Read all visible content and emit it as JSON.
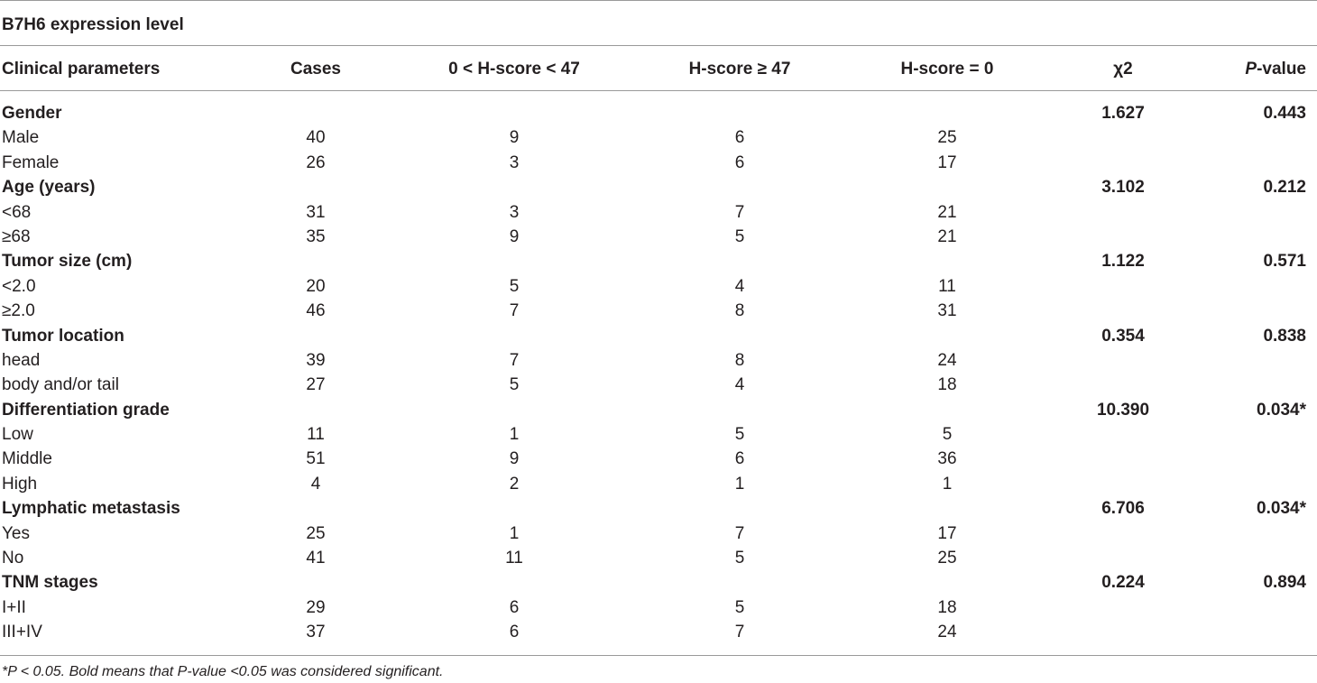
{
  "caption": "B7H6 expression level",
  "headers": {
    "param": "Clinical parameters",
    "cases": "Cases",
    "low": "0 < H-score < 47",
    "high": "H-score ≥ 47",
    "zero": "H-score = 0",
    "chi": "χ2",
    "p_italic": "P",
    "p_rest": "-value"
  },
  "rows": [
    {
      "param": "Gender",
      "cases": "",
      "low": "",
      "high": "",
      "zero": "",
      "chi": "1.627",
      "p": "0.443",
      "group": true
    },
    {
      "param": "Male",
      "cases": "40",
      "low": "9",
      "high": "6",
      "zero": "25",
      "chi": "",
      "p": "",
      "group": false
    },
    {
      "param": "Female",
      "cases": "26",
      "low": "3",
      "high": "6",
      "zero": "17",
      "chi": "",
      "p": "",
      "group": false
    },
    {
      "param": "Age (years)",
      "cases": "",
      "low": "",
      "high": "",
      "zero": "",
      "chi": "3.102",
      "p": "0.212",
      "group": true
    },
    {
      "param": "<68",
      "cases": "31",
      "low": "3",
      "high": "7",
      "zero": "21",
      "chi": "",
      "p": "",
      "group": false
    },
    {
      "param": "≥68",
      "cases": "35",
      "low": "9",
      "high": "5",
      "zero": "21",
      "chi": "",
      "p": "",
      "group": false
    },
    {
      "param": "Tumor size (cm)",
      "cases": "",
      "low": "",
      "high": "",
      "zero": "",
      "chi": "1.122",
      "p": "0.571",
      "group": true
    },
    {
      "param": "<2.0",
      "cases": "20",
      "low": "5",
      "high": "4",
      "zero": "11",
      "chi": "",
      "p": "",
      "group": false
    },
    {
      "param": "≥2.0",
      "cases": "46",
      "low": "7",
      "high": "8",
      "zero": "31",
      "chi": "",
      "p": "",
      "group": false
    },
    {
      "param": "Tumor location",
      "cases": "",
      "low": "",
      "high": "",
      "zero": "",
      "chi": "0.354",
      "p": "0.838",
      "group": true
    },
    {
      "param": "head",
      "cases": "39",
      "low": "7",
      "high": "8",
      "zero": "24",
      "chi": "",
      "p": "",
      "group": false
    },
    {
      "param": "body and/or tail",
      "cases": "27",
      "low": "5",
      "high": "4",
      "zero": "18",
      "chi": "",
      "p": "",
      "group": false
    },
    {
      "param": "Differentiation grade",
      "cases": "",
      "low": "",
      "high": "",
      "zero": "",
      "chi": "10.390",
      "p": "0.034*",
      "group": true
    },
    {
      "param": "Low",
      "cases": "11",
      "low": "1",
      "high": "5",
      "zero": "5",
      "chi": "",
      "p": "",
      "group": false
    },
    {
      "param": "Middle",
      "cases": "51",
      "low": "9",
      "high": "6",
      "zero": "36",
      "chi": "",
      "p": "",
      "group": false
    },
    {
      "param": "High",
      "cases": "4",
      "low": "2",
      "high": "1",
      "zero": "1",
      "chi": "",
      "p": "",
      "group": false
    },
    {
      "param": "Lymphatic metastasis",
      "cases": "",
      "low": "",
      "high": "",
      "zero": "",
      "chi": "6.706",
      "p": "0.034*",
      "group": true
    },
    {
      "param": "Yes",
      "cases": "25",
      "low": "1",
      "high": "7",
      "zero": "17",
      "chi": "",
      "p": "",
      "group": false
    },
    {
      "param": "No",
      "cases": "41",
      "low": "11",
      "high": "5",
      "zero": "25",
      "chi": "",
      "p": "",
      "group": false
    },
    {
      "param": "TNM stages",
      "cases": "",
      "low": "",
      "high": "",
      "zero": "",
      "chi": "0.224",
      "p": "0.894",
      "group": true
    },
    {
      "param": "I+II",
      "cases": "29",
      "low": "6",
      "high": "5",
      "zero": "18",
      "chi": "",
      "p": "",
      "group": false
    },
    {
      "param": "III+IV",
      "cases": "37",
      "low": "6",
      "high": "7",
      "zero": "24",
      "chi": "",
      "p": "",
      "group": false
    }
  ],
  "footnote": "*P < 0.05. Bold means that P-value <0.05 was considered significant."
}
